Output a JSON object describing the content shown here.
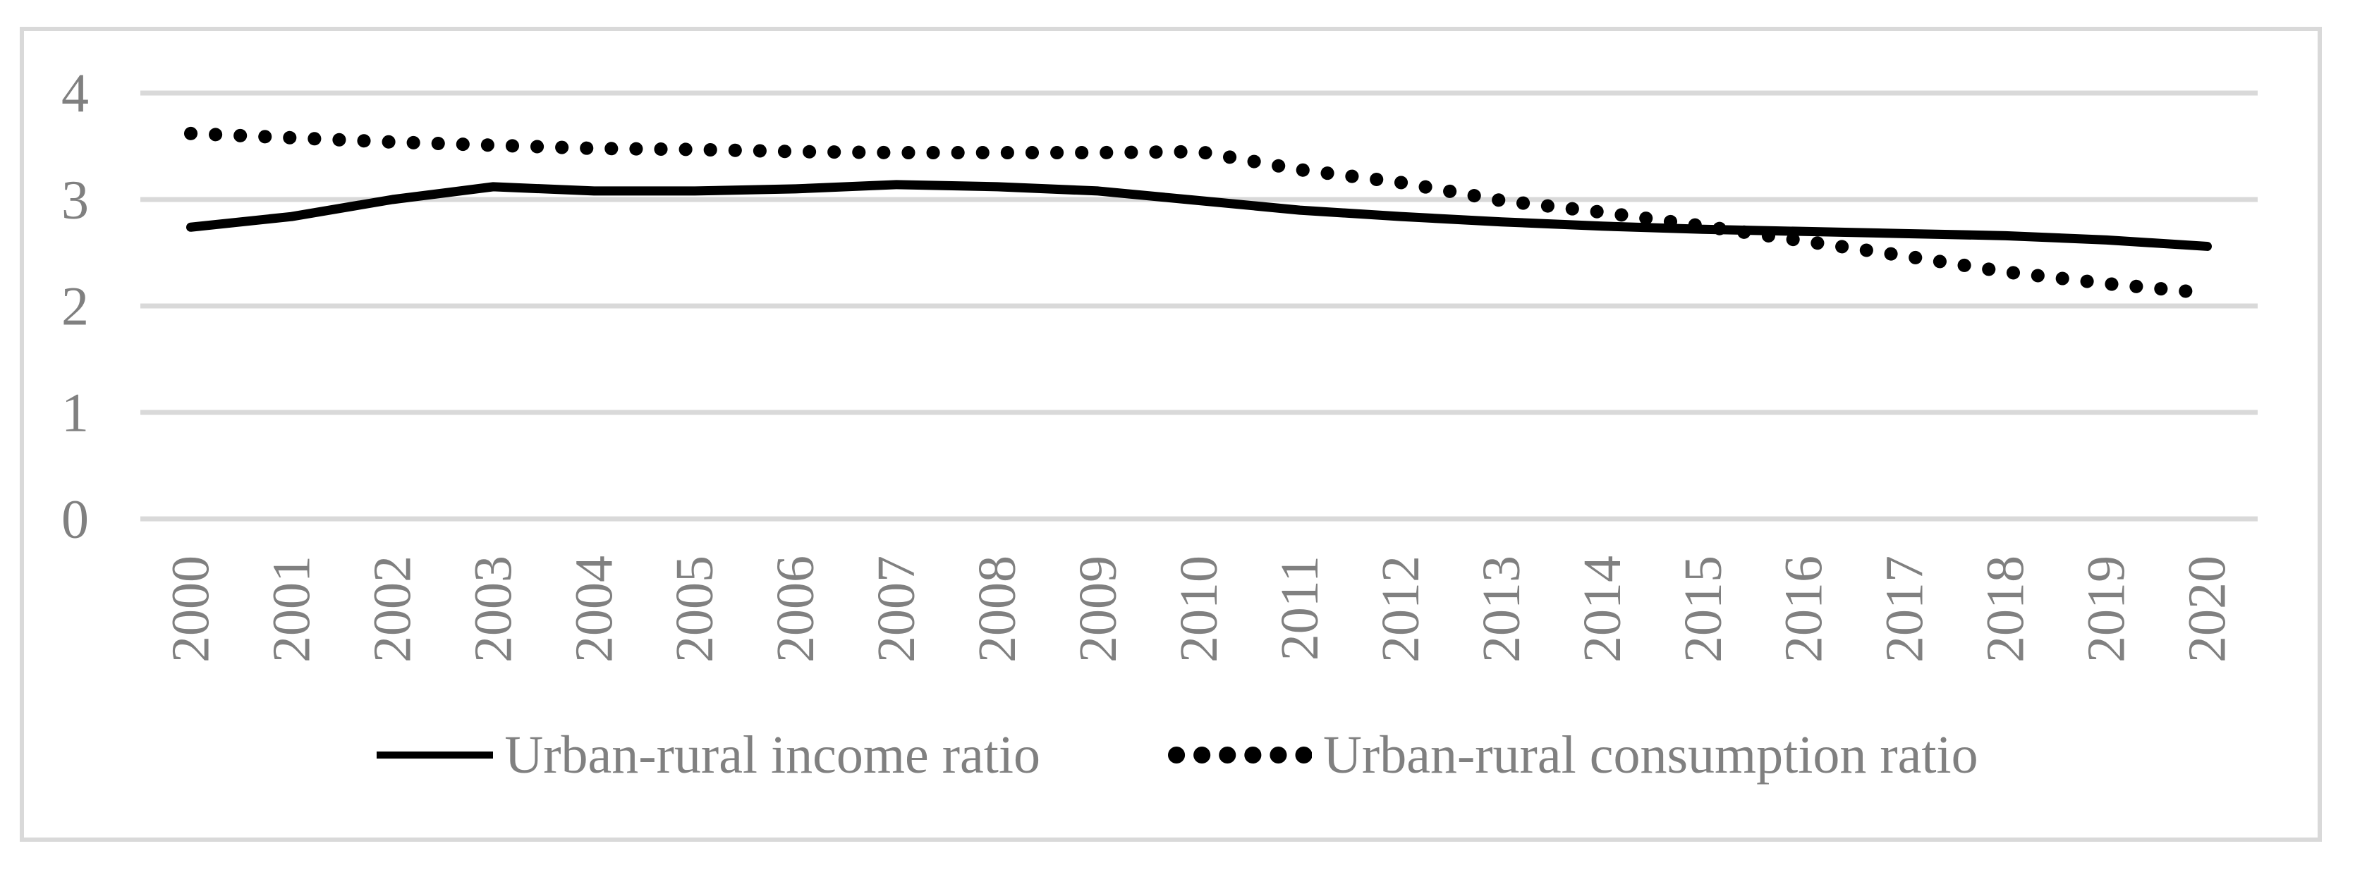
{
  "chart_data": {
    "type": "line",
    "title": "",
    "xlabel": "",
    "ylabel": "",
    "categories": [
      "2000",
      "2001",
      "2002",
      "2003",
      "2004",
      "2005",
      "2006",
      "2007",
      "2008",
      "2009",
      "2010",
      "2011",
      "2012",
      "2013",
      "2014",
      "2015",
      "2016",
      "2017",
      "2018",
      "2019",
      "2020"
    ],
    "series": [
      {
        "name": "Urban-rural income ratio",
        "line_style": "solid",
        "values": [
          2.74,
          2.84,
          3.0,
          3.12,
          3.08,
          3.08,
          3.1,
          3.14,
          3.12,
          3.08,
          2.99,
          2.9,
          2.84,
          2.79,
          2.75,
          2.72,
          2.7,
          2.68,
          2.66,
          2.62,
          2.56
        ]
      },
      {
        "name": "Urban-rural consumption ratio",
        "line_style": "dotted",
        "values": [
          3.62,
          3.58,
          3.54,
          3.51,
          3.48,
          3.47,
          3.45,
          3.44,
          3.44,
          3.44,
          3.45,
          3.28,
          3.16,
          2.99,
          2.88,
          2.75,
          2.61,
          2.47,
          2.32,
          2.21,
          2.12
        ]
      }
    ],
    "ylim": [
      0,
      4
    ],
    "yticks": [
      0,
      1,
      2,
      3,
      4
    ],
    "grid": true,
    "legend_position": "bottom-center",
    "colors": {
      "series_line": "#000000",
      "grid": "#d9d9d9",
      "panel_border": "#d9d9d9",
      "axis_text": "#808080",
      "background": "#ffffff"
    }
  }
}
